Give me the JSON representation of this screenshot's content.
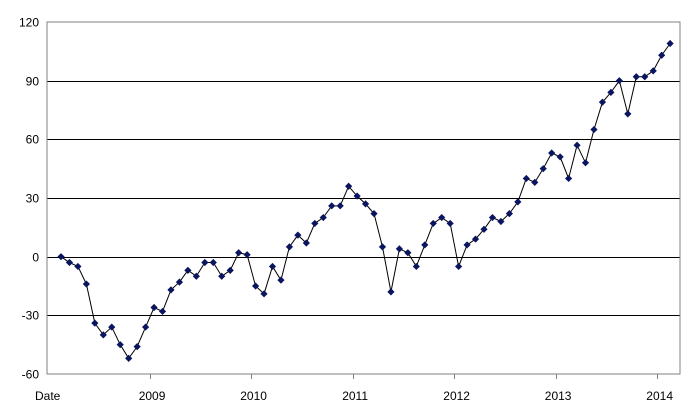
{
  "chart_data": {
    "type": "line",
    "title": "",
    "xlabel": "",
    "ylabel": "",
    "ylim": [
      -60,
      120
    ],
    "y_ticks": [
      120,
      90,
      60,
      30,
      0,
      -30,
      -60
    ],
    "grid": "horizontal",
    "line_color": "#000000",
    "marker_color": "#0a1560",
    "marker": "diamond",
    "x_tick_labels": [
      {
        "label": "Date",
        "x": 0
      },
      {
        "label": "2009",
        "x": 11
      },
      {
        "label": "2010",
        "x": 23
      },
      {
        "label": "2011",
        "x": 35
      },
      {
        "label": "2012",
        "x": 47
      },
      {
        "label": "2013",
        "x": 59
      },
      {
        "label": "2014",
        "x": 71
      }
    ],
    "series": [
      {
        "x": [
          0,
          1,
          2,
          3,
          4,
          5,
          6,
          7,
          8,
          9,
          10,
          11,
          12,
          13,
          14,
          15,
          16,
          17,
          18,
          19,
          20,
          21,
          22,
          23,
          24,
          25,
          26,
          27,
          28,
          29,
          30,
          31,
          32,
          33,
          34,
          35,
          36,
          37,
          38,
          39,
          40,
          41,
          42,
          43,
          44,
          45,
          46,
          47,
          48,
          49,
          50,
          51,
          52,
          53,
          54,
          55,
          56,
          57,
          58,
          59,
          60,
          61,
          62,
          63,
          64,
          65,
          66,
          67,
          68,
          69,
          70,
          71,
          72
        ],
        "values": [
          0,
          -3,
          -5,
          -14,
          -34,
          -40,
          -36,
          -45,
          -52,
          -46,
          -36,
          -26,
          -28,
          -17,
          -13,
          -7,
          -10,
          -3,
          -3,
          -10,
          -7,
          2,
          1,
          -15,
          -19,
          -5,
          -12,
          5,
          11,
          7,
          17,
          20,
          26,
          26,
          36,
          31,
          27,
          22,
          5,
          -18,
          4,
          2,
          -5,
          6,
          17,
          20,
          17,
          -5,
          6,
          9,
          14,
          20,
          18,
          22,
          28,
          40,
          38,
          45,
          53,
          51,
          40,
          57,
          48,
          65,
          79,
          84,
          90,
          73,
          92,
          92,
          95,
          103,
          109
        ]
      }
    ]
  }
}
